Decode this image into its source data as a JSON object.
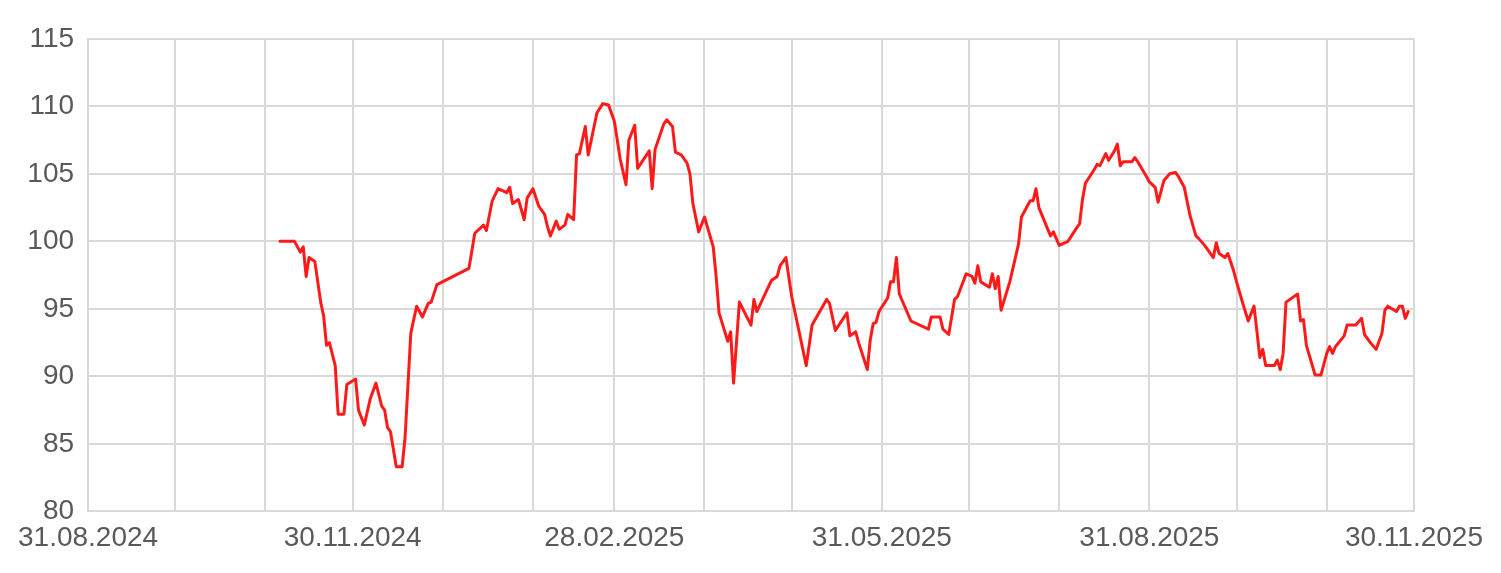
{
  "chart_data": {
    "type": "line",
    "grid": true,
    "legend": false,
    "marker": "none",
    "line_style": "solid",
    "xlim": [
      "2024-08-31",
      "2025-11-30"
    ],
    "xticks": [
      {
        "value": "2024-08-31",
        "label": "31.08.2024"
      },
      {
        "value": "2024-09-30",
        "label": null
      },
      {
        "value": "2024-10-31",
        "label": null
      },
      {
        "value": "2024-11-30",
        "label": "30.11.2024"
      },
      {
        "value": "2024-12-31",
        "label": null
      },
      {
        "value": "2025-01-31",
        "label": null
      },
      {
        "value": "2025-02-28",
        "label": "28.02.2025"
      },
      {
        "value": "2025-03-31",
        "label": null
      },
      {
        "value": "2025-04-30",
        "label": null
      },
      {
        "value": "2025-05-31",
        "label": "31.05.2025"
      },
      {
        "value": "2025-06-30",
        "label": null
      },
      {
        "value": "2025-07-31",
        "label": null
      },
      {
        "value": "2025-08-31",
        "label": "31.08.2025"
      },
      {
        "value": "2025-09-30",
        "label": null
      },
      {
        "value": "2025-10-31",
        "label": null
      },
      {
        "value": "2025-11-30",
        "label": "30.11.2025"
      }
    ],
    "ylim": [
      80,
      115
    ],
    "yticks": [
      80,
      85,
      90,
      95,
      100,
      105,
      110,
      115
    ],
    "series": [
      {
        "color": "#ff1a1a",
        "x": [
          "2024-11-05",
          "2024-11-10",
          "2024-11-12",
          "2024-11-13",
          "2024-11-14",
          "2024-11-15",
          "2024-11-17",
          "2024-11-19",
          "2024-11-20",
          "2024-11-21",
          "2024-11-22",
          "2024-11-24",
          "2024-11-25",
          "2024-11-27",
          "2024-11-28",
          "2024-12-01",
          "2024-12-02",
          "2024-12-04",
          "2024-12-06",
          "2024-12-08",
          "2024-12-10",
          "2024-12-11",
          "2024-12-12",
          "2024-12-13",
          "2024-12-15",
          "2024-12-17",
          "2024-12-18",
          "2024-12-20",
          "2024-12-22",
          "2024-12-24",
          "2024-12-26",
          "2024-12-27",
          "2024-12-29",
          "2025-01-09",
          "2025-01-11",
          "2025-01-14",
          "2025-01-15",
          "2025-01-17",
          "2025-01-19",
          "2025-01-22",
          "2025-01-23",
          "2025-01-24",
          "2025-01-26",
          "2025-01-28",
          "2025-01-29",
          "2025-01-31",
          "2025-02-02",
          "2025-02-04",
          "2025-02-05",
          "2025-02-06",
          "2025-02-08",
          "2025-02-09",
          "2025-02-11",
          "2025-02-12",
          "2025-02-14",
          "2025-02-15",
          "2025-02-16",
          "2025-02-18",
          "2025-02-19",
          "2025-02-22",
          "2025-02-24",
          "2025-02-26",
          "2025-02-28",
          "2025-03-02",
          "2025-03-04",
          "2025-03-05",
          "2025-03-07",
          "2025-03-08",
          "2025-03-12",
          "2025-03-13",
          "2025-03-14",
          "2025-03-17",
          "2025-03-18",
          "2025-03-20",
          "2025-03-21",
          "2025-03-23",
          "2025-03-25",
          "2025-03-26",
          "2025-03-27",
          "2025-03-29",
          "2025-03-31",
          "2025-04-03",
          "2025-04-04",
          "2025-04-05",
          "2025-04-08",
          "2025-04-09",
          "2025-04-10",
          "2025-04-12",
          "2025-04-16",
          "2025-04-17",
          "2025-04-18",
          "2025-04-23",
          "2025-04-25",
          "2025-04-26",
          "2025-04-28",
          "2025-04-30",
          "2025-05-05",
          "2025-05-07",
          "2025-05-12",
          "2025-05-13",
          "2025-05-15",
          "2025-05-19",
          "2025-05-20",
          "2025-05-22",
          "2025-05-23",
          "2025-05-26",
          "2025-05-27",
          "2025-05-28",
          "2025-05-29",
          "2025-05-30",
          "2025-06-02",
          "2025-06-03",
          "2025-06-04",
          "2025-06-05",
          "2025-06-06",
          "2025-06-10",
          "2025-06-16",
          "2025-06-17",
          "2025-06-20",
          "2025-06-21",
          "2025-06-23",
          "2025-06-25",
          "2025-06-26",
          "2025-06-29",
          "2025-07-01",
          "2025-07-02",
          "2025-07-03",
          "2025-07-04",
          "2025-07-07",
          "2025-07-08",
          "2025-07-09",
          "2025-07-10",
          "2025-07-11",
          "2025-07-14",
          "2025-07-17",
          "2025-07-18",
          "2025-07-21",
          "2025-07-22",
          "2025-07-23",
          "2025-07-24",
          "2025-07-28",
          "2025-07-29",
          "2025-07-31",
          "2025-08-03",
          "2025-08-06",
          "2025-08-07",
          "2025-08-08",
          "2025-08-09",
          "2025-08-12",
          "2025-08-13",
          "2025-08-14",
          "2025-08-16",
          "2025-08-17",
          "2025-08-19",
          "2025-08-20",
          "2025-08-21",
          "2025-08-22",
          "2025-08-25",
          "2025-08-26",
          "2025-08-27",
          "2025-08-30",
          "2025-08-31",
          "2025-09-02",
          "2025-09-03",
          "2025-09-04",
          "2025-09-05",
          "2025-09-07",
          "2025-09-09",
          "2025-09-10",
          "2025-09-12",
          "2025-09-14",
          "2025-09-16",
          "2025-09-17",
          "2025-09-19",
          "2025-09-22",
          "2025-09-23",
          "2025-09-24",
          "2025-09-26",
          "2025-09-27",
          "2025-09-29",
          "2025-09-30",
          "2025-10-02",
          "2025-10-04",
          "2025-10-06",
          "2025-10-08",
          "2025-10-09",
          "2025-10-10",
          "2025-10-13",
          "2025-10-14",
          "2025-10-15",
          "2025-10-16",
          "2025-10-17",
          "2025-10-21",
          "2025-10-22",
          "2025-10-23",
          "2025-10-24",
          "2025-10-27",
          "2025-10-29",
          "2025-10-31",
          "2025-11-01",
          "2025-11-02",
          "2025-11-03",
          "2025-11-06",
          "2025-11-07",
          "2025-11-10",
          "2025-11-12",
          "2025-11-13",
          "2025-11-15",
          "2025-11-17",
          "2025-11-19",
          "2025-11-20",
          "2025-11-21",
          "2025-11-24",
          "2025-11-25",
          "2025-11-26",
          "2025-11-27",
          "2025-11-28"
        ],
        "values": [
          100.0,
          100.0,
          99.2,
          99.6,
          97.4,
          98.8,
          98.5,
          95.5,
          94.5,
          92.3,
          92.5,
          90.8,
          87.2,
          87.2,
          89.4,
          89.8,
          87.5,
          86.4,
          88.3,
          89.5,
          87.8,
          87.5,
          86.2,
          85.9,
          83.3,
          83.3,
          85.4,
          93.2,
          95.2,
          94.4,
          95.4,
          95.5,
          96.8,
          98.0,
          100.6,
          101.2,
          100.8,
          103.0,
          103.9,
          103.6,
          104.0,
          102.8,
          103.1,
          101.6,
          103.2,
          103.9,
          102.6,
          102.0,
          101.1,
          100.4,
          101.5,
          100.9,
          101.2,
          102.0,
          101.6,
          106.4,
          106.5,
          108.5,
          106.4,
          109.5,
          110.2,
          110.1,
          108.9,
          106.1,
          104.2,
          107.5,
          108.6,
          105.4,
          106.7,
          103.9,
          106.8,
          108.7,
          109.0,
          108.5,
          106.6,
          106.4,
          105.8,
          105.0,
          102.8,
          100.7,
          101.8,
          99.6,
          97.4,
          94.7,
          92.6,
          93.3,
          89.5,
          95.5,
          93.8,
          95.7,
          94.8,
          97.1,
          97.4,
          98.2,
          98.8,
          95.9,
          90.8,
          93.8,
          95.7,
          95.4,
          93.4,
          94.7,
          93.0,
          93.3,
          92.5,
          90.5,
          92.7,
          93.9,
          94.0,
          94.8,
          95.8,
          97.0,
          97.0,
          98.8,
          96.1,
          94.1,
          93.5,
          94.4,
          94.4,
          93.5,
          93.1,
          95.7,
          95.9,
          97.6,
          97.4,
          96.9,
          98.2,
          97.0,
          96.6,
          97.6,
          96.5,
          97.4,
          94.9,
          97.0,
          99.8,
          101.8,
          103.0,
          103.0,
          103.9,
          102.5,
          100.4,
          100.7,
          99.7,
          100.0,
          101.0,
          101.3,
          103.1,
          104.3,
          105.3,
          105.7,
          105.6,
          106.5,
          106.0,
          106.7,
          107.2,
          105.6,
          105.9,
          105.9,
          106.2,
          105.9,
          104.8,
          104.4,
          104.0,
          102.9,
          103.7,
          104.5,
          105.0,
          105.1,
          104.8,
          104.0,
          101.9,
          100.4,
          100.2,
          99.7,
          98.8,
          99.9,
          99.1,
          98.8,
          99.1,
          97.8,
          97.0,
          95.5,
          94.1,
          95.2,
          91.4,
          92.0,
          90.8,
          90.8,
          91.2,
          90.5,
          91.7,
          95.5,
          96.1,
          94.1,
          94.2,
          92.3,
          90.1,
          90.1,
          91.7,
          92.2,
          91.7,
          92.2,
          93.0,
          93.8,
          93.8,
          94.3,
          93.1,
          92.5,
          92.0,
          93.2,
          94.9,
          95.2,
          94.8,
          95.2,
          95.2,
          94.3,
          94.8
        ]
      }
    ]
  }
}
